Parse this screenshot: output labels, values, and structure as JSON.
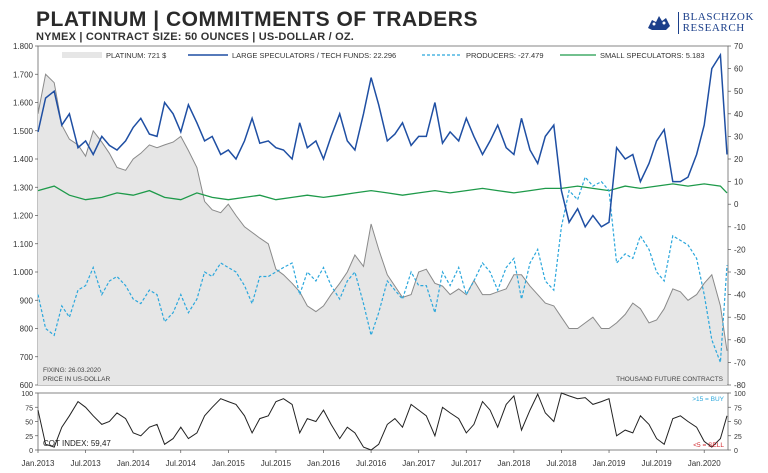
{
  "header": {
    "title": "PLATINUM | COMMITMENTS OF TRADERS",
    "subtitle": "NYMEX | CONTRACT SIZE: 50 OUNCES | US-DOLLAR / OZ.",
    "brand_line1": "BLASCHZOK",
    "brand_line2": "RESEARCH",
    "brand_logo_icon": "bull-bear-logo-icon"
  },
  "chart_data": [
    {
      "type": "line",
      "title": "PLATINUM | COMMITMENTS OF TRADERS",
      "x_tick_labels": [
        "Jan.2013",
        "Jul.2013",
        "Jan.2014",
        "Jul.2014",
        "Jan.2015",
        "Jul.2015",
        "Jan.2016",
        "Jul.2016",
        "Jan.2017",
        "Jul.2017",
        "Jan.2018",
        "Jul.2018",
        "Jan.2019",
        "Jul.2019",
        "Jan.2020"
      ],
      "x_range": [
        "2013-01",
        "2020-03"
      ],
      "y_left": {
        "range": [
          600,
          1800
        ],
        "ticks": [
          "1.800",
          "1.700",
          "1.600",
          "1.500",
          "1.400",
          "1.300",
          "1.200",
          "1.100",
          "1.000",
          "900",
          "800",
          "700",
          "600"
        ],
        "label": "PRICE IN US-DOLLAR"
      },
      "y_right": {
        "range": [
          -80,
          70
        ],
        "ticks": [
          "70",
          "60",
          "50",
          "40",
          "30",
          "20",
          "10",
          "0",
          "-10",
          "-20",
          "-30",
          "-40",
          "-50",
          "-60",
          "-70",
          "-80"
        ],
        "label": "THOUSAND FUTURE CONTRACTS"
      },
      "legend_position": "top",
      "annotations": {
        "fixing": "FIXING: 26.03.2020",
        "price_unit": "PRICE IN US-DOLLAR",
        "contracts_unit": "THOUSAND FUTURE CONTRACTS"
      },
      "series": [
        {
          "name": "PLATINUM: 721 $",
          "axis": "left",
          "color": "#bdbdbd",
          "style": "area",
          "x": [
            2013.0,
            2013.08,
            2013.17,
            2013.25,
            2013.33,
            2013.42,
            2013.5,
            2013.58,
            2013.67,
            2013.75,
            2013.83,
            2013.92,
            2014.0,
            2014.08,
            2014.17,
            2014.25,
            2014.33,
            2014.42,
            2014.5,
            2014.58,
            2014.67,
            2014.75,
            2014.83,
            2014.92,
            2015.0,
            2015.08,
            2015.17,
            2015.25,
            2015.33,
            2015.42,
            2015.5,
            2015.58,
            2015.67,
            2015.75,
            2015.83,
            2015.92,
            2016.0,
            2016.08,
            2016.17,
            2016.25,
            2016.33,
            2016.42,
            2016.5,
            2016.58,
            2016.67,
            2016.75,
            2016.83,
            2016.92,
            2017.0,
            2017.08,
            2017.17,
            2017.25,
            2017.33,
            2017.42,
            2017.5,
            2017.58,
            2017.67,
            2017.75,
            2017.83,
            2017.92,
            2018.0,
            2018.08,
            2018.17,
            2018.25,
            2018.33,
            2018.42,
            2018.5,
            2018.58,
            2018.67,
            2018.75,
            2018.83,
            2018.92,
            2019.0,
            2019.08,
            2019.17,
            2019.25,
            2019.33,
            2019.42,
            2019.5,
            2019.58,
            2019.67,
            2019.75,
            2019.83,
            2019.92,
            2020.0,
            2020.08,
            2020.17,
            2020.24
          ],
          "values": [
            1560,
            1700,
            1670,
            1520,
            1470,
            1450,
            1410,
            1500,
            1460,
            1420,
            1370,
            1360,
            1400,
            1420,
            1450,
            1440,
            1450,
            1460,
            1480,
            1430,
            1370,
            1250,
            1220,
            1210,
            1240,
            1200,
            1160,
            1140,
            1120,
            1100,
            1010,
            990,
            960,
            930,
            880,
            860,
            880,
            920,
            960,
            1000,
            1060,
            1020,
            1170,
            1080,
            990,
            950,
            910,
            920,
            1000,
            1010,
            960,
            950,
            920,
            940,
            920,
            970,
            920,
            920,
            930,
            940,
            990,
            990,
            950,
            920,
            890,
            880,
            840,
            800,
            800,
            820,
            840,
            800,
            800,
            820,
            850,
            890,
            870,
            820,
            830,
            870,
            940,
            930,
            900,
            920,
            960,
            990,
            880,
            721
          ]
        },
        {
          "name": "LARGE SPECULATORS / TECH FUNDS: 22.296",
          "axis": "right",
          "color": "#1f4fa3",
          "style": "line",
          "x": [
            2013.0,
            2013.08,
            2013.17,
            2013.25,
            2013.33,
            2013.42,
            2013.5,
            2013.58,
            2013.67,
            2013.75,
            2013.83,
            2013.92,
            2014.0,
            2014.08,
            2014.17,
            2014.25,
            2014.33,
            2014.42,
            2014.5,
            2014.58,
            2014.67,
            2014.75,
            2014.83,
            2014.92,
            2015.0,
            2015.08,
            2015.17,
            2015.25,
            2015.33,
            2015.42,
            2015.5,
            2015.58,
            2015.67,
            2015.75,
            2015.83,
            2015.92,
            2016.0,
            2016.08,
            2016.17,
            2016.25,
            2016.33,
            2016.42,
            2016.5,
            2016.58,
            2016.67,
            2016.75,
            2016.83,
            2016.92,
            2017.0,
            2017.08,
            2017.17,
            2017.25,
            2017.33,
            2017.42,
            2017.5,
            2017.58,
            2017.67,
            2017.75,
            2017.83,
            2017.92,
            2018.0,
            2018.08,
            2018.17,
            2018.25,
            2018.33,
            2018.42,
            2018.5,
            2018.58,
            2018.67,
            2018.75,
            2018.83,
            2018.92,
            2019.0,
            2019.08,
            2019.17,
            2019.25,
            2019.33,
            2019.42,
            2019.5,
            2019.58,
            2019.67,
            2019.75,
            2019.83,
            2019.92,
            2020.0,
            2020.08,
            2020.17,
            2020.24
          ],
          "values": [
            32,
            47,
            50,
            35,
            40,
            25,
            28,
            22,
            30,
            26,
            24,
            28,
            34,
            38,
            31,
            30,
            45,
            40,
            32,
            44,
            36,
            28,
            30,
            22,
            24,
            20,
            28,
            38,
            27,
            28,
            25,
            24,
            20,
            36,
            25,
            28,
            20,
            30,
            40,
            28,
            24,
            40,
            56,
            44,
            28,
            31,
            36,
            26,
            30,
            30,
            45,
            27,
            32,
            28,
            38,
            30,
            22,
            28,
            35,
            25,
            22,
            38,
            24,
            18,
            30,
            35,
            6,
            -8,
            -2,
            -10,
            -5,
            -10,
            -8,
            25,
            20,
            22,
            10,
            18,
            28,
            33,
            10,
            10,
            12,
            22,
            35,
            60,
            66,
            22
          ]
        },
        {
          "name": "PRODUCERS: -27.479",
          "axis": "right",
          "color": "#2ba7dc",
          "style": "dashed",
          "x": [
            2013.0,
            2013.08,
            2013.17,
            2013.25,
            2013.33,
            2013.42,
            2013.5,
            2013.58,
            2013.67,
            2013.75,
            2013.83,
            2013.92,
            2014.0,
            2014.08,
            2014.17,
            2014.25,
            2014.33,
            2014.42,
            2014.5,
            2014.58,
            2014.67,
            2014.75,
            2014.83,
            2014.92,
            2015.0,
            2015.08,
            2015.17,
            2015.25,
            2015.33,
            2015.42,
            2015.5,
            2015.58,
            2015.67,
            2015.75,
            2015.83,
            2015.92,
            2016.0,
            2016.08,
            2016.17,
            2016.25,
            2016.33,
            2016.42,
            2016.5,
            2016.58,
            2016.67,
            2016.75,
            2016.83,
            2016.92,
            2017.0,
            2017.08,
            2017.17,
            2017.25,
            2017.33,
            2017.42,
            2017.5,
            2017.58,
            2017.67,
            2017.75,
            2017.83,
            2017.92,
            2018.0,
            2018.08,
            2018.17,
            2018.25,
            2018.33,
            2018.42,
            2018.5,
            2018.58,
            2018.67,
            2018.75,
            2018.83,
            2018.92,
            2019.0,
            2019.08,
            2019.17,
            2019.25,
            2019.33,
            2019.42,
            2019.5,
            2019.58,
            2019.67,
            2019.75,
            2019.83,
            2019.92,
            2020.0,
            2020.08,
            2020.17,
            2020.24
          ],
          "values": [
            -40,
            -55,
            -58,
            -45,
            -50,
            -38,
            -36,
            -28,
            -40,
            -34,
            -32,
            -36,
            -42,
            -44,
            -38,
            -40,
            -52,
            -48,
            -40,
            -48,
            -42,
            -30,
            -32,
            -26,
            -28,
            -30,
            -36,
            -44,
            -32,
            -32,
            -30,
            -28,
            -26,
            -40,
            -30,
            -34,
            -28,
            -36,
            -42,
            -34,
            -30,
            -44,
            -58,
            -48,
            -34,
            -38,
            -42,
            -30,
            -36,
            -36,
            -48,
            -30,
            -36,
            -28,
            -40,
            -34,
            -26,
            -30,
            -38,
            -28,
            -24,
            -42,
            -26,
            -20,
            -34,
            -38,
            -10,
            6,
            2,
            12,
            8,
            10,
            6,
            -26,
            -22,
            -24,
            -14,
            -20,
            -30,
            -34,
            -14,
            -16,
            -18,
            -24,
            -40,
            -60,
            -70,
            -27
          ]
        },
        {
          "name": "SMALL SPECULATORS: 5.183",
          "axis": "right",
          "color": "#1e9a4a",
          "style": "line",
          "x": [
            2013.0,
            2013.17,
            2013.33,
            2013.5,
            2013.67,
            2013.83,
            2014.0,
            2014.17,
            2014.33,
            2014.5,
            2014.67,
            2014.83,
            2015.0,
            2015.17,
            2015.33,
            2015.5,
            2015.67,
            2015.83,
            2016.0,
            2016.17,
            2016.33,
            2016.5,
            2016.67,
            2016.83,
            2017.0,
            2017.17,
            2017.33,
            2017.5,
            2017.67,
            2017.83,
            2018.0,
            2018.17,
            2018.33,
            2018.5,
            2018.67,
            2018.83,
            2019.0,
            2019.17,
            2019.33,
            2019.5,
            2019.67,
            2019.83,
            2020.0,
            2020.17,
            2020.24
          ],
          "values": [
            6,
            8,
            4,
            2,
            3,
            5,
            4,
            6,
            3,
            2,
            5,
            3,
            2,
            3,
            4,
            2,
            3,
            4,
            3,
            4,
            5,
            6,
            5,
            4,
            5,
            6,
            5,
            6,
            7,
            6,
            5,
            6,
            7,
            7,
            8,
            7,
            6,
            8,
            7,
            8,
            9,
            8,
            9,
            8,
            5
          ]
        }
      ]
    },
    {
      "type": "line",
      "title": "COT INDEX",
      "x_tick_labels": [
        "Jan.2013",
        "Jul.2013",
        "Jan.2014",
        "Jul.2014",
        "Jan.2015",
        "Jul.2015",
        "Jan.2016",
        "Jul.2016",
        "Jan.2017",
        "Jul.2017",
        "Jan.2018",
        "Jul.2018",
        "Jan.2019",
        "Jul.2019",
        "Jan.2020"
      ],
      "y_range": [
        0,
        100
      ],
      "y_ticks": [
        "100",
        "75",
        "50",
        "25",
        "0"
      ],
      "annotations": {
        "buy_zone": ">15 = BUY",
        "sell_zone": "<5 = SELL",
        "value_label": "COT INDEX: 59,47"
      },
      "series": [
        {
          "name": "COT INDEX: 59,47",
          "color": "#222222",
          "x": [
            2013.0,
            2013.08,
            2013.17,
            2013.25,
            2013.33,
            2013.42,
            2013.5,
            2013.58,
            2013.67,
            2013.75,
            2013.83,
            2013.92,
            2014.0,
            2014.08,
            2014.17,
            2014.25,
            2014.33,
            2014.42,
            2014.5,
            2014.58,
            2014.67,
            2014.75,
            2014.83,
            2014.92,
            2015.0,
            2015.08,
            2015.17,
            2015.25,
            2015.33,
            2015.42,
            2015.5,
            2015.58,
            2015.67,
            2015.75,
            2015.83,
            2015.92,
            2016.0,
            2016.08,
            2016.17,
            2016.25,
            2016.33,
            2016.42,
            2016.5,
            2016.58,
            2016.67,
            2016.75,
            2016.83,
            2016.92,
            2017.0,
            2017.08,
            2017.17,
            2017.25,
            2017.33,
            2017.42,
            2017.5,
            2017.58,
            2017.67,
            2017.75,
            2017.83,
            2017.92,
            2018.0,
            2018.08,
            2018.17,
            2018.25,
            2018.33,
            2018.42,
            2018.5,
            2018.58,
            2018.67,
            2018.75,
            2018.83,
            2018.92,
            2019.0,
            2019.08,
            2019.17,
            2019.25,
            2019.33,
            2019.42,
            2019.5,
            2019.58,
            2019.67,
            2019.75,
            2019.83,
            2019.92,
            2020.0,
            2020.08,
            2020.17,
            2020.24
          ],
          "values": [
            70,
            10,
            5,
            40,
            60,
            85,
            75,
            60,
            45,
            50,
            65,
            55,
            30,
            25,
            40,
            45,
            10,
            20,
            40,
            20,
            30,
            60,
            75,
            90,
            85,
            80,
            60,
            30,
            55,
            60,
            85,
            90,
            80,
            30,
            55,
            50,
            70,
            45,
            20,
            40,
            30,
            5,
            0,
            10,
            45,
            55,
            40,
            80,
            70,
            60,
            25,
            75,
            65,
            55,
            30,
            45,
            85,
            70,
            40,
            80,
            95,
            35,
            70,
            98,
            65,
            50,
            100,
            95,
            90,
            92,
            80,
            85,
            90,
            25,
            35,
            30,
            60,
            45,
            20,
            10,
            55,
            60,
            50,
            40,
            15,
            5,
            20,
            60
          ]
        }
      ]
    }
  ]
}
